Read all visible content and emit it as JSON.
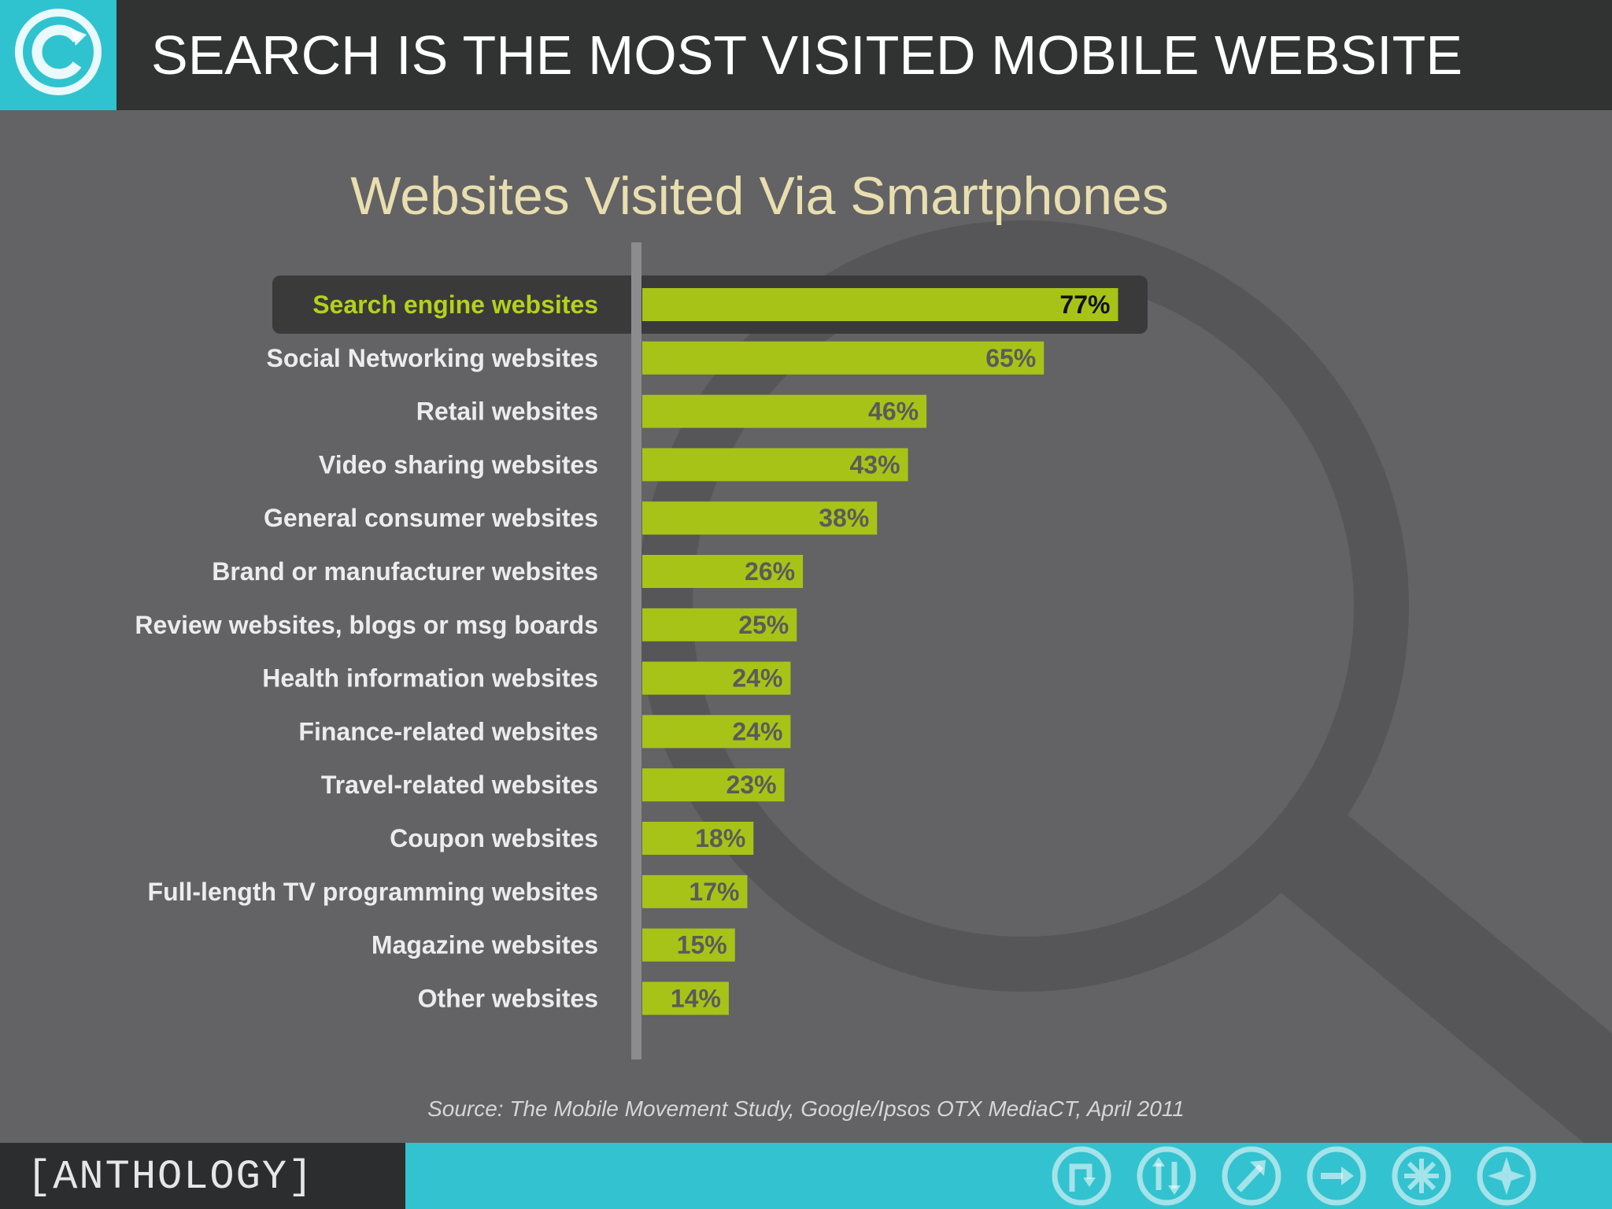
{
  "header": {
    "title": "SEARCH IS THE MOST VISITED MOBILE WEBSITE",
    "logo_icon": "circled-c-icon",
    "background": "#313232",
    "accent": "#2fc3cf"
  },
  "chart_data": {
    "type": "bar",
    "orientation": "horizontal",
    "title": "Websites Visited Via Smartphones",
    "categories": [
      "Search engine websites",
      "Social Networking websites",
      "Retail websites",
      "Video sharing websites",
      "General consumer websites",
      "Brand or manufacturer websites",
      "Review websites, blogs or msg boards",
      "Health information websites",
      "Finance-related websites",
      "Travel-related websites",
      "Coupon websites",
      "Full-length TV programming websites",
      "Magazine websites",
      "Other websites"
    ],
    "values": [
      77,
      65,
      46,
      43,
      38,
      26,
      25,
      24,
      24,
      23,
      18,
      17,
      15,
      14
    ],
    "value_labels": [
      "77%",
      "65%",
      "46%",
      "43%",
      "38%",
      "26%",
      "25%",
      "24%",
      "24%",
      "23%",
      "18%",
      "17%",
      "15%",
      "14%"
    ],
    "highlighted_index": 0,
    "bar_color": "#a8c317",
    "highlight_label_color": "#b5d11b",
    "label_color": "#ececec",
    "value_label_color": "#5b5b5b",
    "grid": false,
    "legend": "none"
  },
  "source": "Source: The Mobile Movement Study, Google/Ipsos OTX MediaCT, April 2011",
  "footer": {
    "brand": "[ANTHOLOGY]",
    "icons": [
      "turn-arrow-icon",
      "up-down-arrows-icon",
      "diagonal-arrow-icon",
      "right-arrow-icon",
      "asterisk-burst-icon",
      "compass-icon"
    ]
  }
}
